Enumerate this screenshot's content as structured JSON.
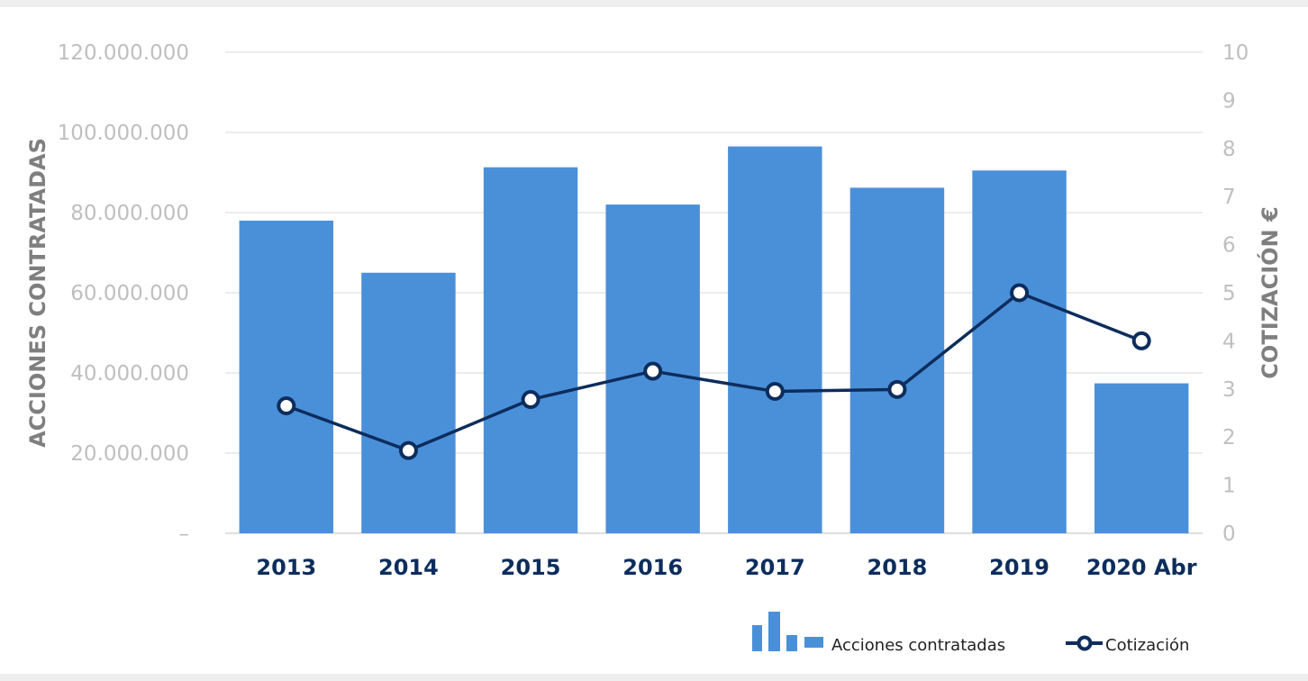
{
  "chart_data": {
    "type": "bar",
    "title": "",
    "categories": [
      "2013",
      "2014",
      "2015",
      "2016",
      "2017",
      "2018",
      "2019",
      "2020 Abr"
    ],
    "series": [
      {
        "name": "Acciones contratadas",
        "type": "bar",
        "axis": "left",
        "color": "#4a90d9",
        "values": [
          78000000,
          65000000,
          91300000,
          82000000,
          96500000,
          86200000,
          90500000,
          37400000
        ]
      },
      {
        "name": "Cotización",
        "type": "line",
        "axis": "right",
        "color": "#0d2d5c",
        "values": [
          2.65,
          1.72,
          2.78,
          3.37,
          2.95,
          2.99,
          5.0,
          4.0
        ]
      }
    ],
    "ylabel": "ACCIONES CONTRATADAS",
    "y2label": "COTIZACIÓN €",
    "ylim": [
      0,
      120000000
    ],
    "y2lim": [
      0,
      10
    ],
    "left_ticks": [
      "–",
      "20.000.000",
      "40.000.000",
      "60.000.000",
      "80.000.000",
      "100.000.000",
      "120.000.000"
    ],
    "right_ticks": [
      "0",
      "1",
      "2",
      "3",
      "4",
      "5",
      "6",
      "7",
      "8",
      "9",
      "10"
    ],
    "grid": true,
    "legend_position": "bottom-right"
  }
}
